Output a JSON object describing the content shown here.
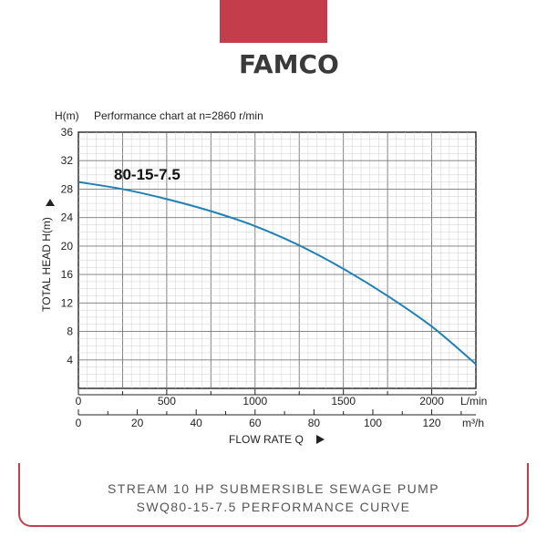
{
  "brand": {
    "name": "FAMCO",
    "bar_color": "#c43d4b"
  },
  "footer": {
    "line1": "STREAM 10 HP SUBMERSIBLE SEWAGE PUMP",
    "line2": "SWQ80-15-7.5 PERFORMANCE CURVE"
  },
  "chart_data": {
    "type": "line",
    "title": "Performance chart at n=2860 r/min",
    "y_unit_label": "H(m)",
    "ylabel": "TOTAL HEAD H(m)",
    "xlabel": "FLOW RATE Q",
    "x_primary_unit": "L/min",
    "x_secondary_unit": "m³/h",
    "ylim": [
      0,
      36
    ],
    "xlim_lmin": [
      0,
      2250
    ],
    "y_ticks": [
      4,
      8,
      12,
      16,
      20,
      24,
      28,
      32,
      36
    ],
    "x_ticks_lmin": [
      0,
      500,
      1000,
      1500,
      2000
    ],
    "x_ticks_m3h": [
      0,
      20,
      40,
      60,
      80,
      100,
      120
    ],
    "grid": true,
    "series": [
      {
        "name": "80-15-7.5",
        "color": "#1f7fb8",
        "x": [
          0,
          250,
          500,
          750,
          1000,
          1250,
          1500,
          1750,
          2000,
          2250
        ],
        "y": [
          29.0,
          28.0,
          26.6,
          24.9,
          22.8,
          20.1,
          16.8,
          13.0,
          8.7,
          3.4
        ]
      }
    ]
  }
}
